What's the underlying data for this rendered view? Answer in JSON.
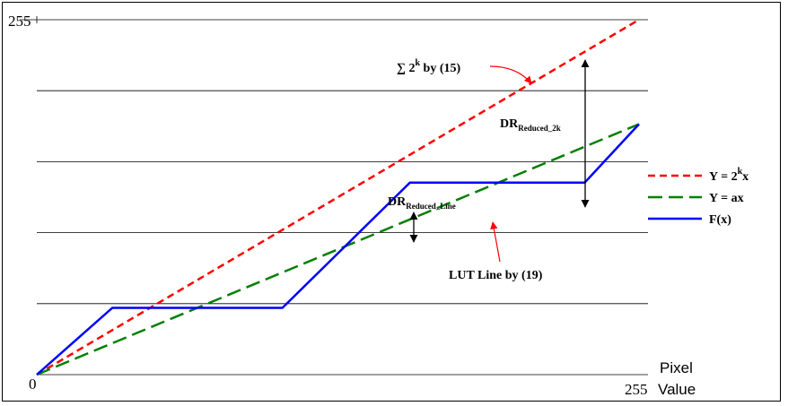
{
  "chart_data": {
    "type": "line",
    "x": [
      0,
      32,
      96,
      160,
      224,
      255
    ],
    "xlim": [
      0,
      255
    ],
    "ylim": [
      0,
      255
    ],
    "x_tick_labels": {
      "min": "0",
      "max": "255"
    },
    "y_tick_labels": {
      "max": "255"
    },
    "xlabel_line1": "Pixel",
    "xlabel_line2": "Value",
    "grid": "horizontal",
    "legend_position": "right",
    "series": [
      {
        "name": "Y = 2",
        "name_sup": "k",
        "name_tail": "x",
        "color": "#ff0000",
        "dash": "dashed",
        "points": [
          [
            0,
            0
          ],
          [
            255,
            255
          ]
        ]
      },
      {
        "name": "Y = ax",
        "color": "#008000",
        "dash": "long-dashed",
        "points": [
          [
            0,
            0
          ],
          [
            255,
            180
          ]
        ]
      },
      {
        "name": "F(x)",
        "color": "#0000ff",
        "dash": "solid",
        "points": [
          [
            0,
            0
          ],
          [
            32,
            48
          ],
          [
            104,
            48
          ],
          [
            158,
            138
          ],
          [
            232,
            138
          ],
          [
            255,
            180
          ]
        ]
      }
    ],
    "annotations": {
      "sum_label": "∑ 2",
      "sum_sup": "k",
      "sum_tail": " by (15)",
      "dr_2k_main": "DR",
      "dr_2k_sub": "Reduced_2k",
      "dr_line_main": "DR",
      "dr_line_sub": "Reduced_Line",
      "lut_label": "LUT Line by (19)"
    }
  }
}
